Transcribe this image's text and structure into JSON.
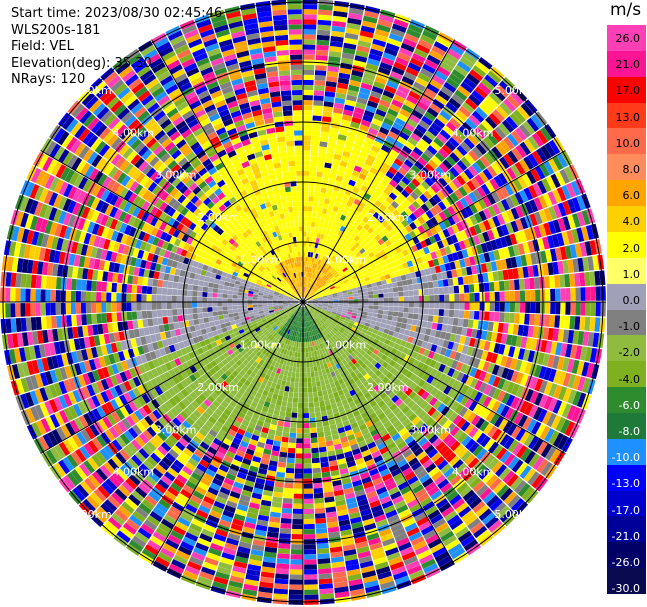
{
  "header": {
    "start_time": "Start time: 2023/08/30 02:45:46",
    "instrument": "WLS200s-181",
    "field": "Field: VEL",
    "elevation": "Elevation(deg): 35.30",
    "nrays": "NRays: 120"
  },
  "colorbar": {
    "unit": "m/s",
    "ticks": [
      "26.0",
      "21.0",
      "17.0",
      "13.0",
      "10.0",
      "8.0",
      "6.0",
      "4.0",
      "2.0",
      "1.0",
      "0.0",
      "-1.0",
      "-2.0",
      "-4.0",
      "-6.0",
      "-8.0",
      "-10.0",
      "-13.0",
      "-17.0",
      "-21.0",
      "-26.0",
      "-30.0"
    ],
    "colors": [
      "#ff3fb6",
      "#ff1493",
      "#ff0000",
      "#ff3b1a",
      "#ff6a4a",
      "#ff8c5a",
      "#ffa500",
      "#ffd000",
      "#ffff00",
      "#ffff66",
      "#a0a0b8",
      "#808080",
      "#8fbc3f",
      "#7fb020",
      "#2e8b2e",
      "#1f7a3a",
      "#1e90ff",
      "#0000ff",
      "#0000cd",
      "#000099",
      "#000066",
      "#0a0a50"
    ]
  },
  "range_labels": {
    "r1": "1.00km",
    "r2": "2.00km",
    "r3": "3.00km",
    "r4": "4.00km",
    "r5": "5.00km"
  }
}
